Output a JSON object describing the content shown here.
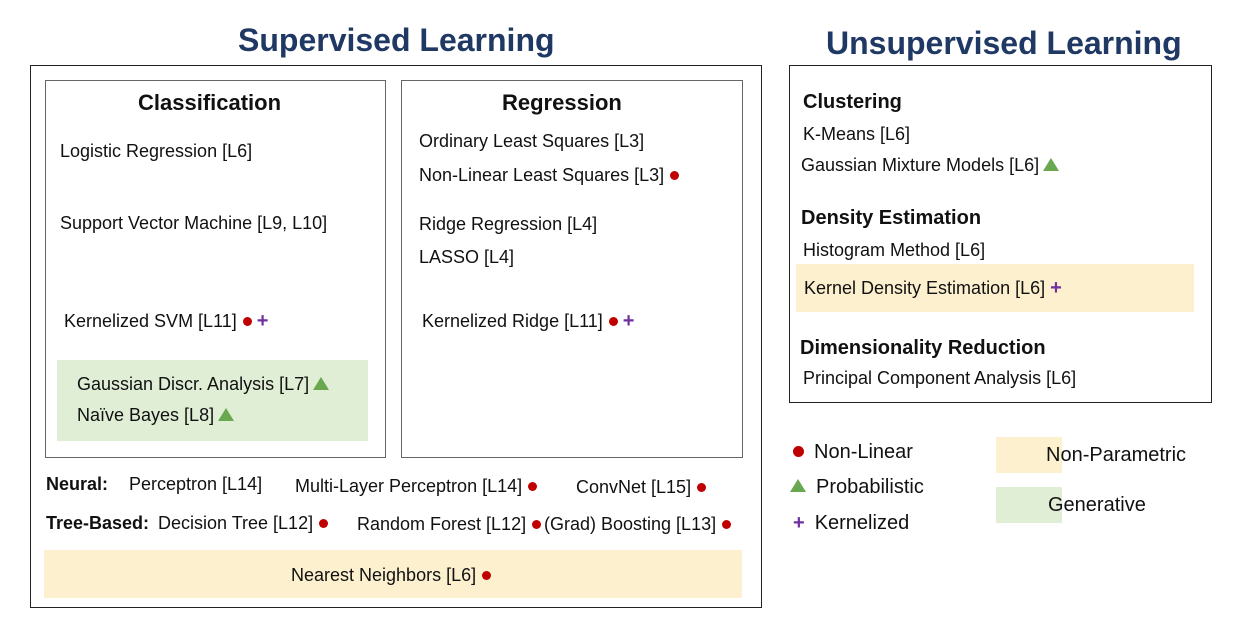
{
  "supervised": {
    "title": "Supervised Learning",
    "classification": {
      "title": "Classification",
      "logistic": "Logistic Regression [L6]",
      "svm": "Support Vector Machine [L9, L10]",
      "kernel_svm": "Kernelized SVM [L11]",
      "gda": "Gaussian Discr. Analysis [L7]",
      "naive_bayes": "Naïve Bayes [L8]"
    },
    "regression": {
      "title": "Regression",
      "ols": "Ordinary Least Squares [L3]",
      "nls": "Non-Linear Least Squares [L3]",
      "ridge": "Ridge Regression [L4]",
      "lasso": "LASSO [L4]",
      "kernel_ridge": "Kernelized Ridge [L11]"
    },
    "neural": {
      "label": "Neural:",
      "perceptron": "Perceptron [L14]",
      "mlp": "Multi-Layer Perceptron [L14]",
      "convnet": "ConvNet [L15]"
    },
    "tree": {
      "label": "Tree-Based:",
      "decision_tree": "Decision Tree [L12]",
      "random_forest": "Random Forest [L12]",
      "boosting": "(Grad) Boosting [L13]"
    },
    "nearest_neighbors": "Nearest Neighbors [L6]"
  },
  "unsupervised": {
    "title": "Unsupervised Learning",
    "clustering": {
      "title": "Clustering",
      "kmeans": "K-Means [L6]",
      "gmm": "Gaussian Mixture Models [L6]"
    },
    "density": {
      "title": "Density Estimation",
      "histogram": "Histogram Method [L6]",
      "kde": "Kernel Density Estimation [L6]"
    },
    "dimred": {
      "title": "Dimensionality Reduction",
      "pca": "Principal Component Analysis [L6]"
    }
  },
  "legend": {
    "nonlinear": "Non-Linear",
    "probabilistic": "Probabilistic",
    "kernelized": "Kernelized",
    "nonparametric": "Non-Parametric",
    "generative": "Generative"
  },
  "colors": {
    "heading": "#1f3864",
    "nonlinear_marker": "#c00000",
    "probabilistic_marker": "#6aa84f",
    "kernelized_marker": "#7030a0",
    "nonparametric_fill": "#fdf0cf",
    "generative_fill": "#e0eed6"
  }
}
